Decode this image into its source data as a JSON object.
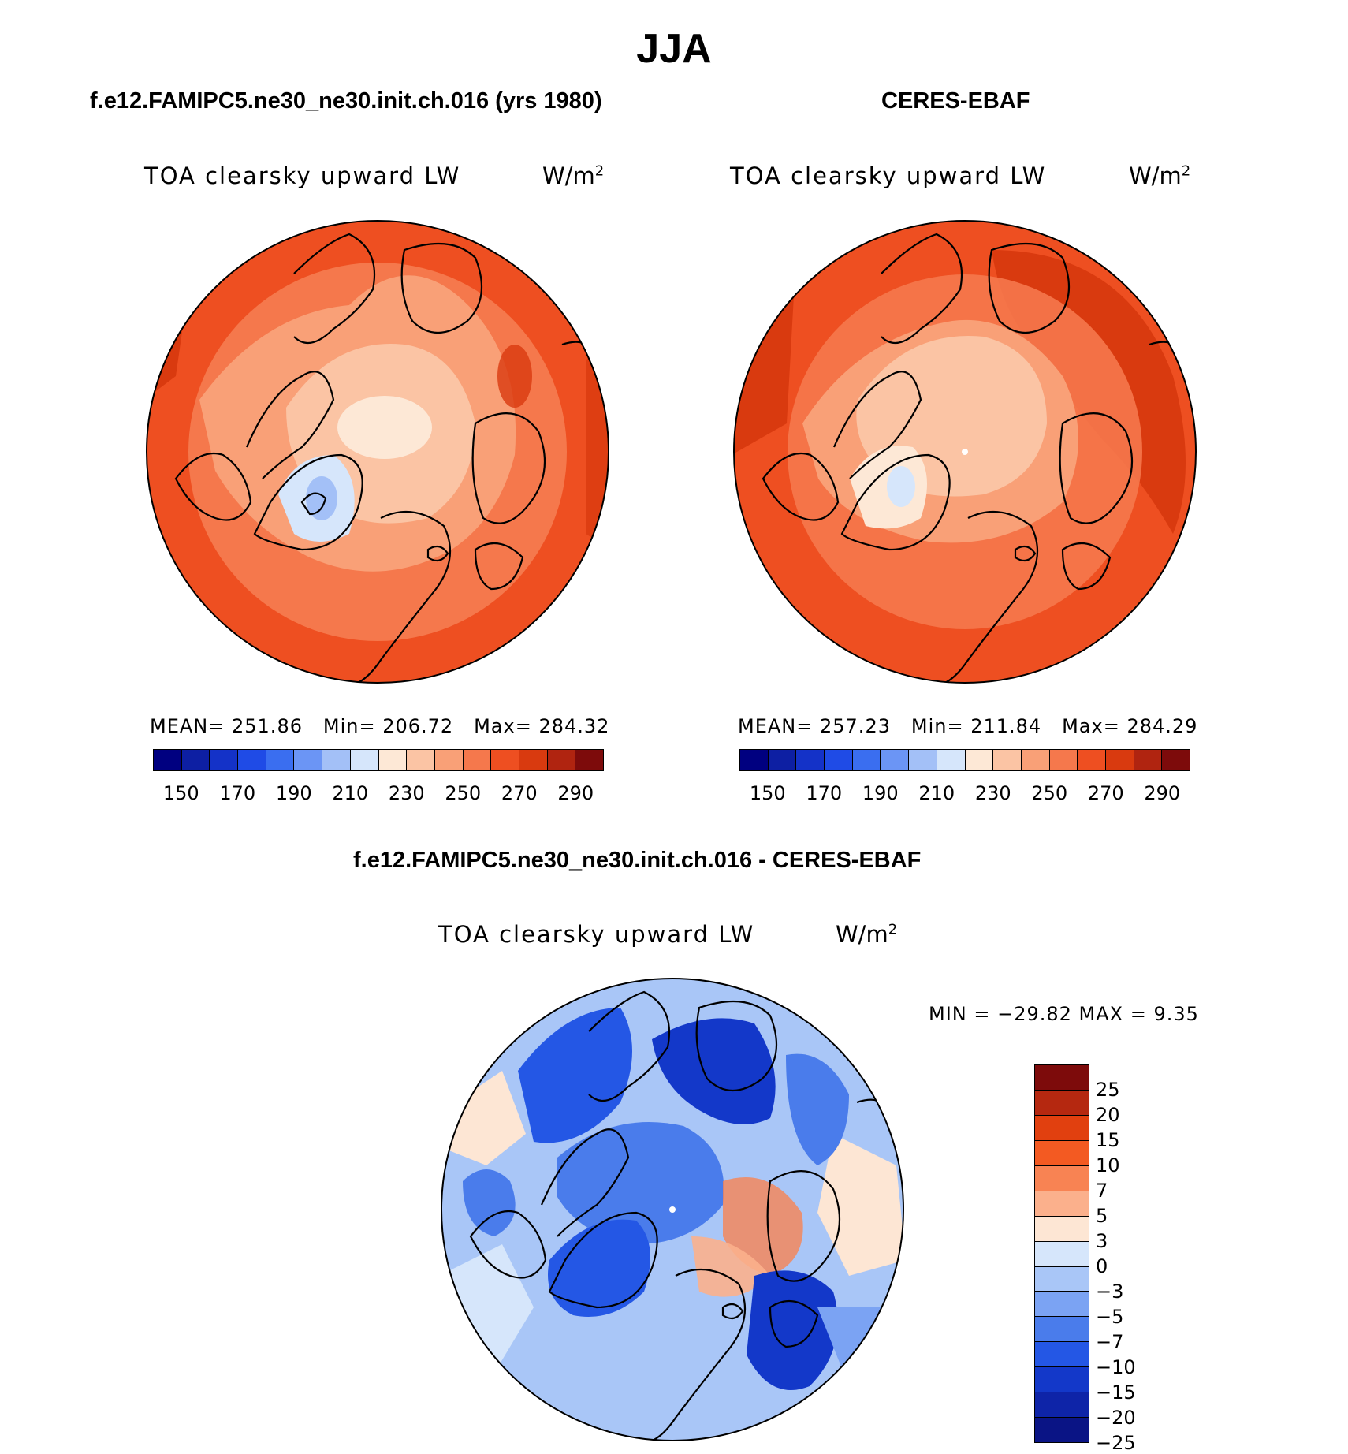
{
  "figure": {
    "season": "JJA",
    "model_title": "f.e12.FAMIPC5.ne30_ne30.init.ch.016 (yrs 1980)",
    "obs_title": "CERES-EBAF",
    "diff_title": "f.e12.FAMIPC5.ne30_ne30.init.ch.016 - CERES-EBAF"
  },
  "panels": {
    "model": {
      "subtitle": "TOA clearsky upward LW",
      "units": "W/m",
      "units_sup": "2",
      "mean_label": "MEAN=",
      "mean": "251.86",
      "min_label": "Min=",
      "min": "206.72",
      "max_label": "Max=",
      "max": "284.32",
      "fill_field": "model"
    },
    "obs": {
      "subtitle": "TOA clearsky upward LW",
      "units": "W/m",
      "units_sup": "2",
      "mean_label": "MEAN=",
      "mean": "257.23",
      "min_label": "Min=",
      "min": "211.84",
      "max_label": "Max=",
      "max": "284.29",
      "fill_field": "obs"
    },
    "diff": {
      "subtitle": "TOA clearsky upward LW",
      "units": "W/m",
      "units_sup": "2",
      "minmax_text": "MIN = −29.82 MAX =    9.35"
    }
  },
  "abs_colorbar": {
    "colors": [
      "#000080",
      "#0d1fa3",
      "#1432c8",
      "#1f4be6",
      "#3a6ef0",
      "#6b95f5",
      "#a3c0f7",
      "#d6e6fb",
      "#fde8d6",
      "#fbc4a4",
      "#f9a077",
      "#f5784c",
      "#ee4f21",
      "#d93a0f",
      "#b02410",
      "#7d0b0b"
    ],
    "ticks": [
      "150",
      "170",
      "190",
      "210",
      "230",
      "250",
      "270",
      "290"
    ]
  },
  "diff_colorbar": {
    "colors": [
      "#7d0b0b",
      "#b52810",
      "#e1400f",
      "#f35a22",
      "#f88353",
      "#fbb08c",
      "#fde6d4",
      "#d6e6fb",
      "#a9c6f7",
      "#7ba3f3",
      "#4a7ceb",
      "#2457e5",
      "#1338c9",
      "#0e24a8",
      "#0a1485"
    ],
    "ticks": [
      "25",
      "20",
      "15",
      "10",
      "7",
      "5",
      "3",
      "0",
      "−3",
      "−5",
      "−7",
      "−10",
      "−15",
      "−20",
      "−25"
    ]
  },
  "chart_data": {
    "type": "heatmap",
    "projection": "north-polar-stereographic",
    "variable": "TOA clearsky upward LW",
    "units": "W/m2",
    "season": "JJA",
    "panels": [
      {
        "name": "model",
        "mean": 251.86,
        "min": 206.72,
        "max": 284.32,
        "levels": [
          150,
          160,
          170,
          180,
          190,
          200,
          210,
          220,
          230,
          240,
          250,
          260,
          270,
          280,
          290
        ]
      },
      {
        "name": "CERES-EBAF",
        "mean": 257.23,
        "min": 211.84,
        "max": 284.29,
        "levels": [
          150,
          160,
          170,
          180,
          190,
          200,
          210,
          220,
          230,
          240,
          250,
          260,
          270,
          280,
          290
        ]
      },
      {
        "name": "model - CERES-EBAF",
        "min": -29.82,
        "max": 9.35,
        "levels": [
          -25,
          -20,
          -15,
          -10,
          -7,
          -5,
          -3,
          0,
          3,
          5,
          7,
          10,
          15,
          20,
          25
        ]
      }
    ]
  }
}
